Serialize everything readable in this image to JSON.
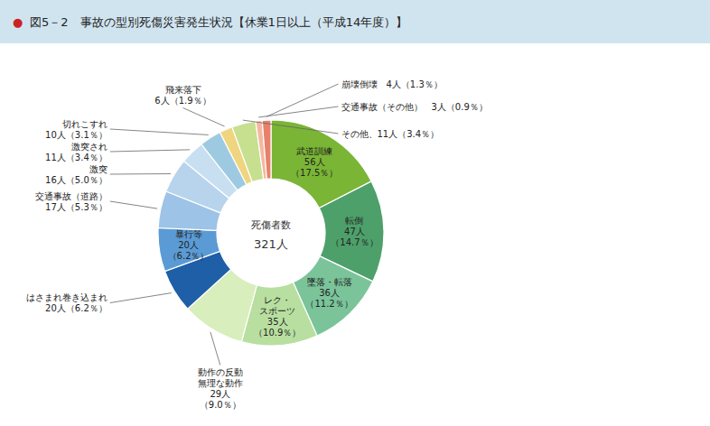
{
  "chart_data": {
    "type": "pie",
    "title": "図5－2　事故の型別死傷災害発生状況【休業1日以上（平成14年度）】",
    "annotations": [
      "●",
      "死傷者数",
      "321人"
    ],
    "values": [
      56,
      47,
      36,
      35,
      29,
      20,
      20,
      17,
      16,
      11,
      10,
      6,
      11,
      3,
      4
    ],
    "value_labels": [
      "武道訓練\n56人\n（17.5％）",
      "転倒\n47人\n（14.7％）",
      "墜落・転落\n36人\n（11.2％）",
      "レク・\nスポーツ\n35人\n（10.9％）",
      "動作の反動\n無理な動作\n29人\n（9.0％）",
      "はさまれ巻き込まれ\n20人（6.2％）",
      "暴行等\n20人\n（6.2％）",
      "交通事故（道路）\n17人（5.3％）",
      "激突\n16人（5.0％）",
      "激突され\n11人（3.4％）",
      "切れこすれ\n10人（3.1％）",
      "飛来落下\n6人（1.9％）",
      "その他、11人（3.4％）",
      "交通事故（その他）　3人（0.9％）",
      "崩壊倒壊　4人（1.3％）"
    ],
    "colors": [
      "#7ab535",
      "#4da06a",
      "#7bc49a",
      "#b8dfa0",
      "#d8eebc",
      "#1e5fa8",
      "#5b9bd5",
      "#9dc3e6",
      "#b8d4ed",
      "#c8dff2",
      "#9ecae1",
      "#f0d580",
      "#c6e090",
      "#f4b8a0",
      "#e8806a"
    ],
    "data_labels": true
  }
}
